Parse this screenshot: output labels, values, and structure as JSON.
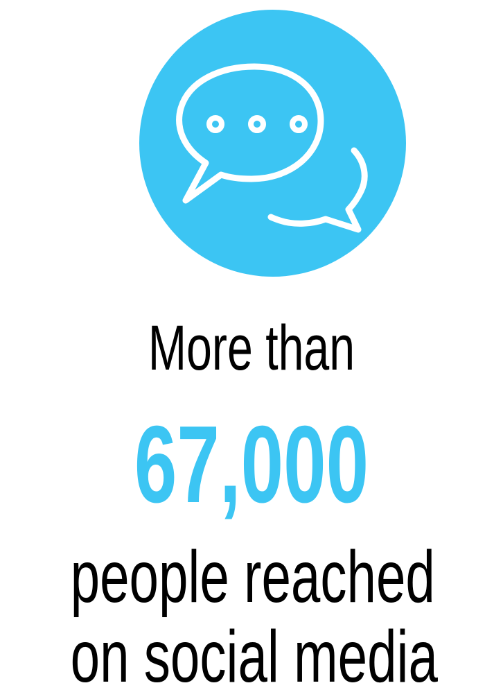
{
  "icon": {
    "name": "chat-bubbles-icon",
    "background_color": "#3CC5F3",
    "stroke_color": "#FFFFFF"
  },
  "stat": {
    "intro": "More than",
    "number": "67,000",
    "number_color": "#3CC5F3",
    "description_line1": "people reached",
    "description_line2": "on social media",
    "text_color": "#000000"
  }
}
